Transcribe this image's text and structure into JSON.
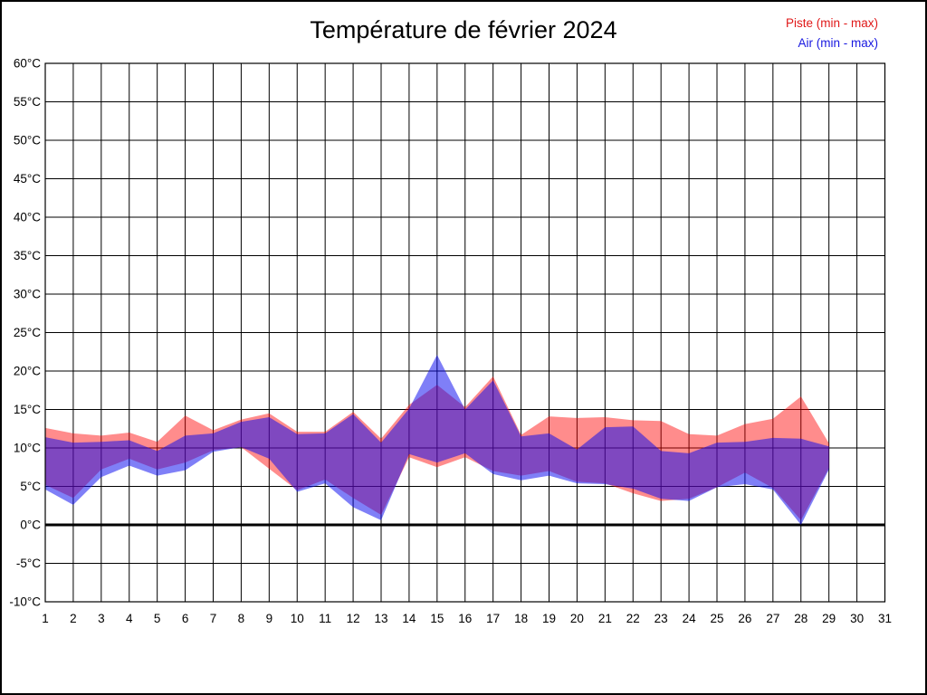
{
  "chart_data": {
    "type": "area",
    "title": "Température de février 2024",
    "x_days": [
      1,
      2,
      3,
      4,
      5,
      6,
      7,
      8,
      9,
      10,
      11,
      12,
      13,
      14,
      15,
      16,
      17,
      18,
      19,
      20,
      21,
      22,
      23,
      24,
      25,
      26,
      27,
      28,
      29
    ],
    "series": [
      {
        "name": "Piste (min - max)",
        "legend_label": "Piste (min - max)",
        "text_color": "#e01818",
        "fill": "#ff0000",
        "fill_opacity": 0.45,
        "min": [
          5.2,
          3.5,
          7.2,
          8.6,
          7.2,
          8.1,
          9.7,
          10.1,
          7.3,
          4.5,
          5.9,
          3.5,
          1.3,
          8.8,
          7.5,
          8.8,
          7.0,
          6.4,
          7.0,
          5.6,
          5.4,
          4.1,
          3.1,
          3.4,
          4.9,
          6.8,
          4.8,
          0.6,
          7.4
        ],
        "max": [
          12.6,
          11.9,
          11.6,
          12.0,
          10.8,
          14.2,
          12.3,
          13.7,
          14.5,
          12.1,
          12.1,
          14.7,
          11.2,
          15.6,
          18.2,
          15.3,
          19.3,
          11.7,
          14.1,
          13.9,
          14.0,
          13.6,
          13.5,
          11.8,
          11.6,
          13.1,
          13.8,
          16.7,
          10.6
        ]
      },
      {
        "name": "Air (min - max)",
        "legend_label": "Air (min - max)",
        "text_color": "#1818e0",
        "fill": "#0a0af0",
        "fill_opacity": 0.52,
        "min": [
          4.6,
          2.6,
          6.2,
          7.7,
          6.4,
          7.1,
          9.5,
          10.1,
          8.6,
          4.3,
          5.4,
          2.3,
          0.6,
          9.2,
          8.1,
          9.3,
          6.6,
          5.8,
          6.4,
          5.4,
          5.3,
          4.7,
          3.4,
          3.1,
          4.9,
          5.3,
          4.6,
          0.0,
          7.2
        ],
        "max": [
          11.4,
          10.7,
          10.8,
          11.0,
          9.6,
          11.6,
          11.9,
          13.4,
          14.0,
          11.8,
          11.9,
          14.4,
          10.7,
          15.1,
          22.1,
          15.0,
          18.8,
          11.5,
          11.9,
          9.8,
          12.7,
          12.8,
          9.6,
          9.3,
          10.7,
          10.8,
          11.3,
          11.2,
          10.2
        ]
      }
    ],
    "xlim": [
      1,
      31
    ],
    "ylim": [
      -10,
      60
    ],
    "yticks": [
      60,
      55,
      50,
      45,
      40,
      35,
      30,
      25,
      20,
      15,
      10,
      5,
      0,
      -5,
      -10
    ],
    "ytick_labels": [
      "60°C",
      "55°C",
      "50°C",
      "45°C",
      "40°C",
      "35°C",
      "30°C",
      "25°C",
      "20°C",
      "15°C",
      "10°C",
      "5°C",
      "0°C",
      "-5°C",
      "-10°C"
    ],
    "xticks": [
      1,
      2,
      3,
      4,
      5,
      6,
      7,
      8,
      9,
      10,
      11,
      12,
      13,
      14,
      15,
      16,
      17,
      18,
      19,
      20,
      21,
      22,
      23,
      24,
      25,
      26,
      27,
      28,
      29,
      30,
      31
    ],
    "xtick_labels": [
      "1",
      "2",
      "3",
      "4",
      "5",
      "6",
      "7",
      "8",
      "9",
      "10",
      "11",
      "12",
      "13",
      "14",
      "15",
      "16",
      "17",
      "18",
      "19",
      "20",
      "21",
      "22",
      "23",
      "24",
      "25",
      "26",
      "27",
      "28",
      "29",
      "30",
      "31"
    ],
    "grid": true,
    "zero_line_bold": true,
    "legend_position": "top-right",
    "grid_color": "#000000",
    "background": "#ffffff"
  }
}
